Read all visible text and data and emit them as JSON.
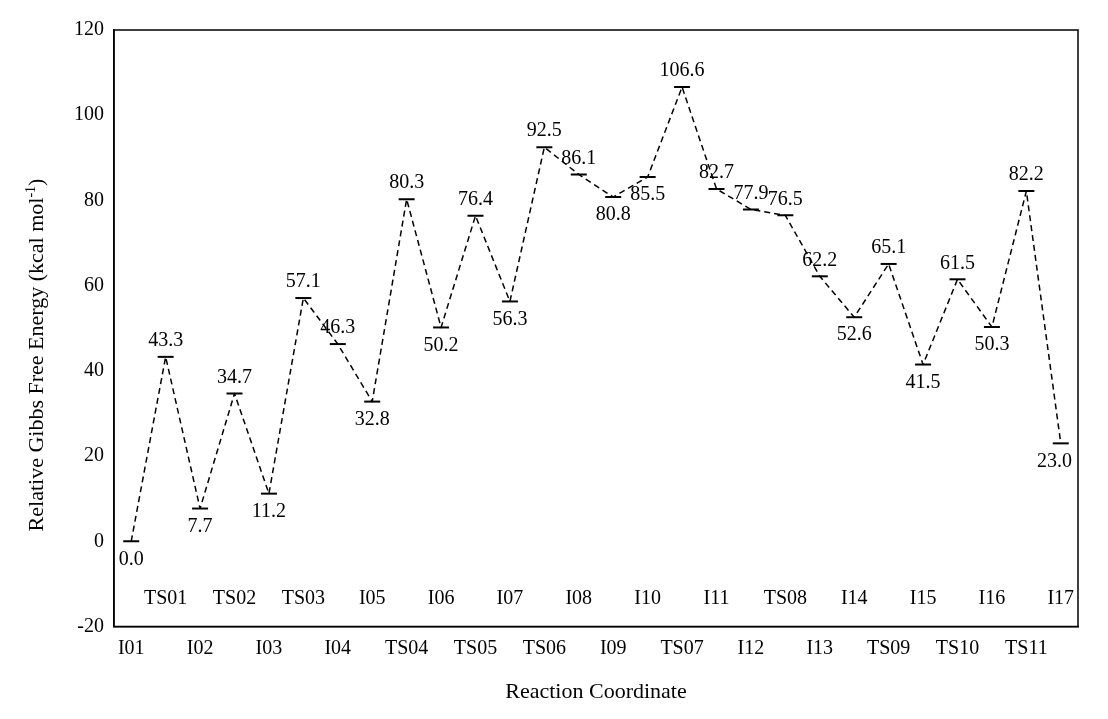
{
  "chart_data": {
    "type": "line",
    "xlabel": "Reaction Coordinate",
    "ylabel": "Relative Gibbs Free Energy (kcal mol$^{-1}$)",
    "categories": [
      "I01",
      "TS01",
      "I02",
      "TS02",
      "I03",
      "TS03",
      "I04",
      "I05",
      "TS04",
      "I06",
      "TS05",
      "I07",
      "TS06",
      "I08",
      "I09",
      "I10",
      "TS07",
      "I11",
      "I12",
      "TS08",
      "I13",
      "I14",
      "TS09",
      "I15",
      "TS10",
      "I16",
      "TS11",
      "I17"
    ],
    "series": [
      {
        "color": "#000000",
        "values": [
          0.0,
          43.3,
          7.7,
          34.7,
          11.2,
          57.1,
          46.3,
          32.8,
          80.3,
          50.2,
          76.4,
          56.3,
          92.5,
          86.1,
          80.8,
          85.5,
          106.6,
          82.7,
          77.9,
          76.5,
          62.2,
          52.6,
          65.1,
          41.5,
          61.5,
          50.3,
          82.2,
          23.0
        ]
      }
    ],
    "value_labels": [
      "0.0",
      "43.3",
      "7.7",
      "34.7",
      "11.2",
      "57.1",
      "46.3",
      "32.8",
      "80.3",
      "50.2",
      "76.4",
      "56.3",
      "92.5",
      "86.1",
      "80.8",
      "85.5",
      "106.6",
      "82.7",
      "77.9",
      "76.5",
      "62.2",
      "52.6",
      "65.1",
      "41.5",
      "61.5",
      "50.3",
      "82.2",
      "23.0"
    ],
    "ylim": [
      -20,
      120
    ],
    "yticks": [
      -20,
      0,
      20,
      40,
      60,
      80,
      100,
      120
    ],
    "grid": false,
    "legend": false,
    "line_style": "dashed"
  }
}
